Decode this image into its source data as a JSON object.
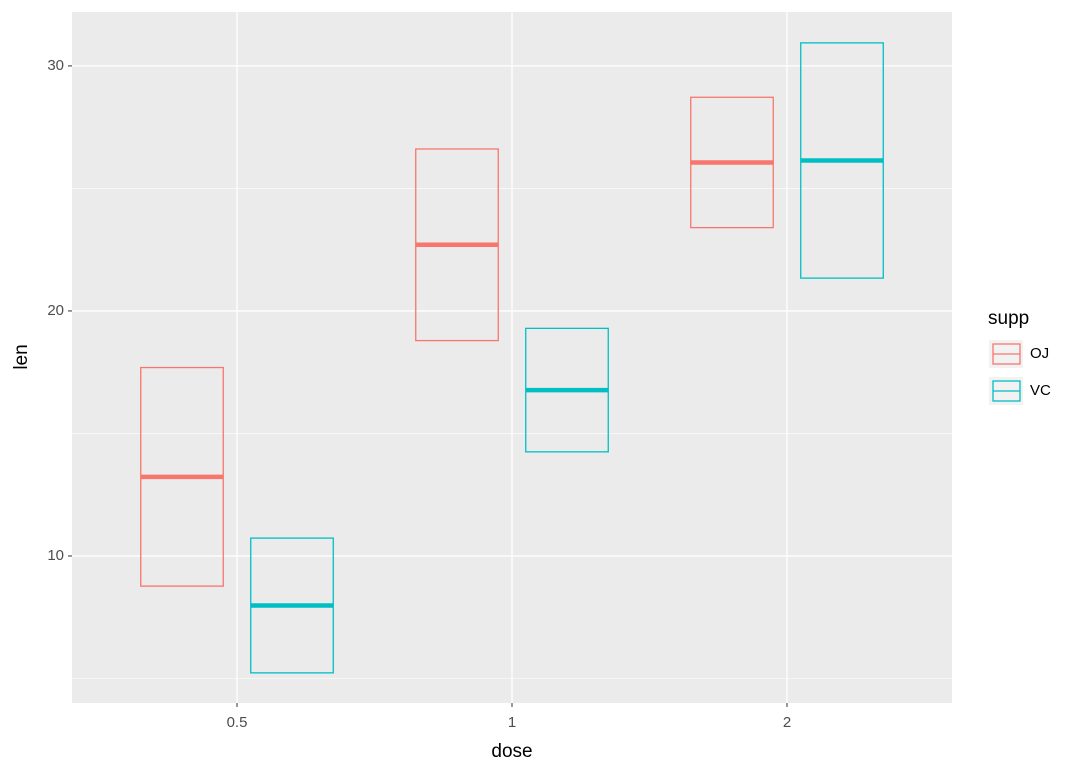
{
  "chart_data": {
    "type": "crossbar",
    "x_label": "dose",
    "y_label": "len",
    "legend_title": "supp",
    "categories": [
      "0.5",
      "1",
      "2"
    ],
    "series": [
      {
        "name": "OJ",
        "color": "#f8766d",
        "values": [
          13.23,
          22.7,
          26.06
        ],
        "lower": [
          8.77,
          18.79,
          23.4
        ],
        "upper": [
          17.69,
          26.61,
          28.72
        ]
      },
      {
        "name": "VC",
        "color": "#00bfc4",
        "values": [
          7.98,
          16.77,
          26.14
        ],
        "lower": [
          5.23,
          14.25,
          21.34
        ],
        "upper": [
          10.73,
          19.29,
          30.94
        ]
      }
    ],
    "ylim": [
      4.0,
      32.2
    ],
    "yticks": [
      10,
      20,
      30
    ],
    "yminor": [
      5,
      15,
      25
    ],
    "grid": true,
    "legend": "right"
  }
}
